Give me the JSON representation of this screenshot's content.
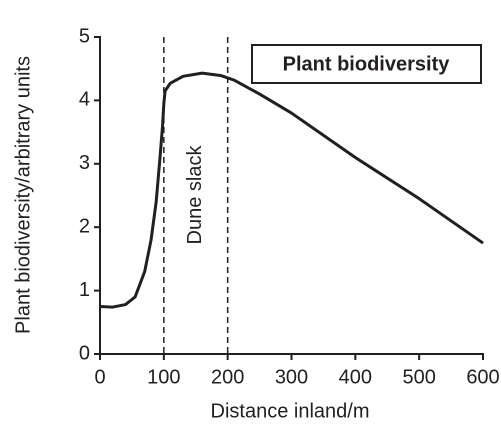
{
  "chart_data": {
    "type": "line",
    "title": "Plant biodiversity",
    "x_label": "Distance inland/m",
    "y_label": "Plant biodiversity/arbitrary units",
    "annotation": "Dune slack",
    "vlines": [
      100,
      200
    ],
    "xlim": [
      0,
      600
    ],
    "ylim": [
      0,
      5
    ],
    "xticks": [
      0,
      100,
      200,
      300,
      400,
      500,
      600
    ],
    "yticks": [
      0,
      1,
      2,
      3,
      4,
      5
    ],
    "series": [
      {
        "color": "#231f20",
        "x": [
          0,
          20,
          40,
          55,
          70,
          80,
          88,
          94,
          98,
          100,
          102,
          110,
          130,
          160,
          190,
          210,
          250,
          300,
          400,
          500,
          600
        ],
        "values": [
          0.75,
          0.74,
          0.78,
          0.9,
          1.3,
          1.8,
          2.4,
          3.1,
          3.6,
          3.95,
          4.15,
          4.27,
          4.38,
          4.43,
          4.39,
          4.32,
          4.1,
          3.8,
          3.1,
          2.45,
          1.75
        ]
      }
    ]
  }
}
